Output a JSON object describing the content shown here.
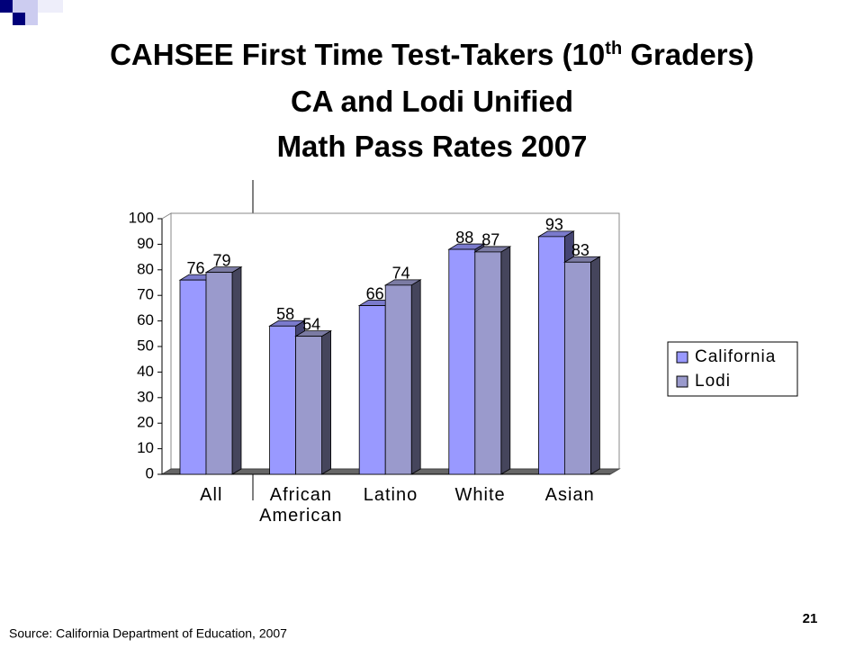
{
  "slide": {
    "title_line1": [
      "CAHSEE First Time Test-Takers (10",
      "th",
      " Graders)"
    ],
    "title_line2": "CA and Lodi Unified",
    "title_line3": "Math Pass Rates 2007",
    "source": "Source: California Department of Education, 2007",
    "page_number": 21
  },
  "chart_data": {
    "type": "bar3d",
    "categories": [
      "All",
      "African American",
      "Latino",
      "White",
      "Asian"
    ],
    "series": [
      {
        "name": "California",
        "color": "#9999ff",
        "values": [
          76,
          58,
          66,
          88,
          93
        ]
      },
      {
        "name": "Lodi",
        "color": "#9a9acc",
        "values": [
          79,
          54,
          74,
          87,
          83
        ]
      }
    ],
    "ylim": [
      0,
      100
    ],
    "yticks": [
      0,
      10,
      20,
      30,
      40,
      50,
      60,
      70,
      80,
      90,
      100
    ],
    "legend": "right"
  }
}
